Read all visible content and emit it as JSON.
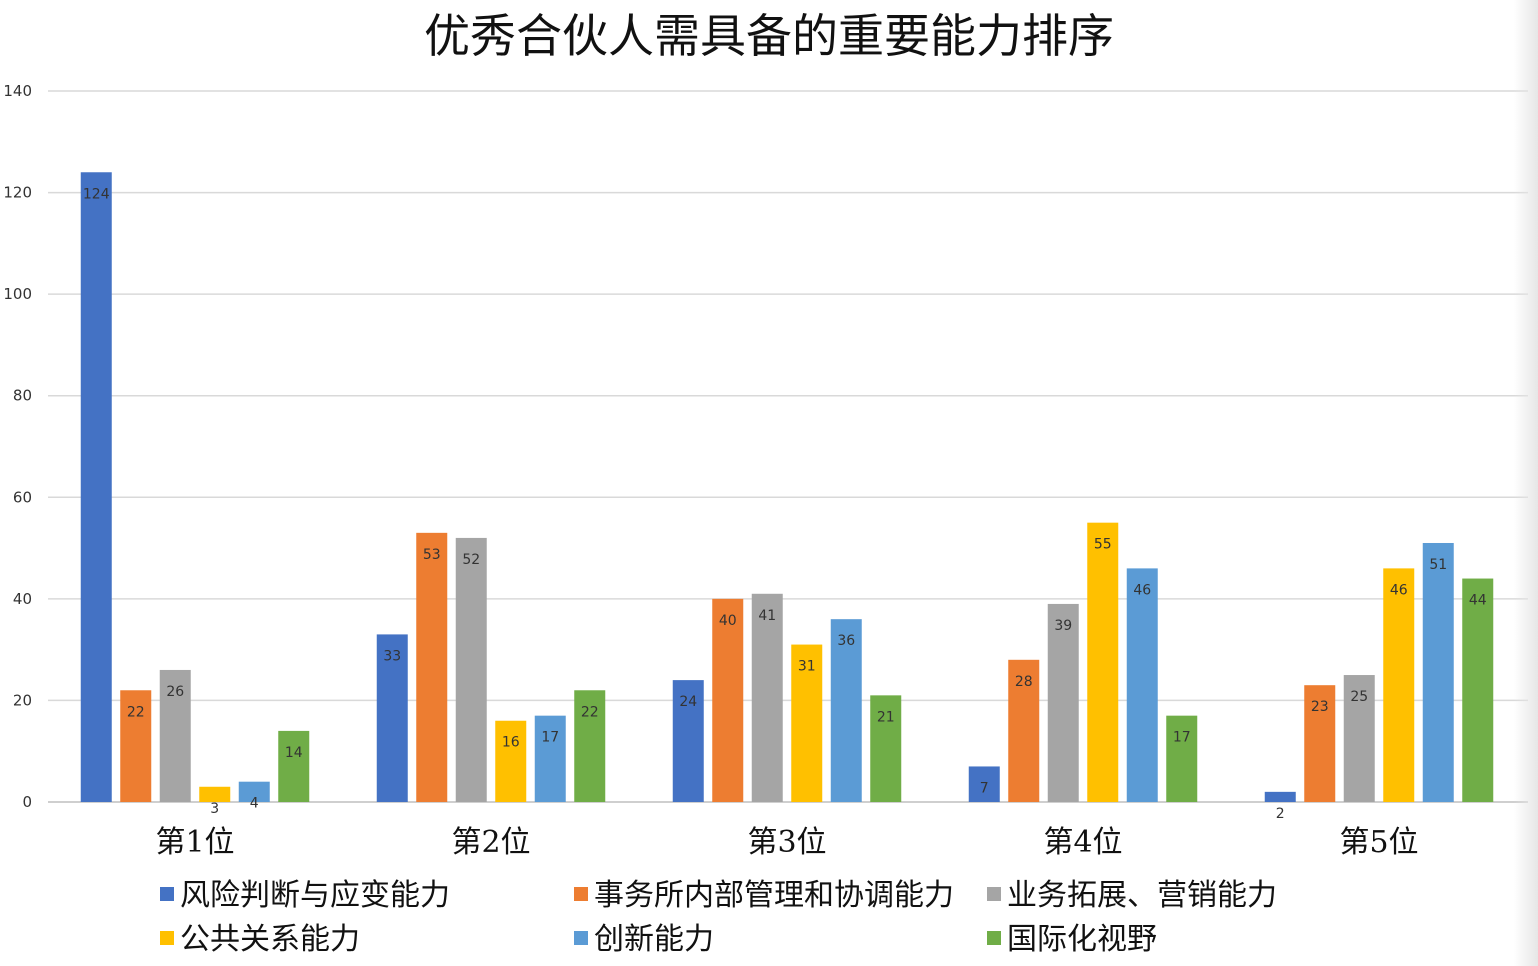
{
  "chart_data": {
    "type": "bar",
    "title": "优秀合伙人需具备的重要能力排序",
    "xlabel": "",
    "ylabel": "",
    "ylim": [
      0,
      140
    ],
    "yticks": [
      0,
      20,
      40,
      60,
      80,
      100,
      120,
      140
    ],
    "grid": true,
    "legend_position": "bottom",
    "categories": [
      "第1位",
      "第2位",
      "第3位",
      "第4位",
      "第5位"
    ],
    "series": [
      {
        "name": "风险判断与应变能力",
        "color": "#4472C4",
        "values": [
          124,
          33,
          24,
          7,
          2
        ]
      },
      {
        "name": "事务所内部管理和协调能力",
        "color": "#ED7D31",
        "values": [
          22,
          53,
          40,
          28,
          23
        ]
      },
      {
        "name": "业务拓展、营销能力",
        "color": "#A5A5A5",
        "values": [
          26,
          52,
          41,
          39,
          25
        ]
      },
      {
        "name": "公共关系能力",
        "color": "#FFC000",
        "values": [
          3,
          16,
          31,
          55,
          46
        ]
      },
      {
        "name": "创新能力",
        "color": "#5B9BD5",
        "values": [
          4,
          17,
          36,
          46,
          51
        ]
      },
      {
        "name": "国际化视野",
        "color": "#70AD47",
        "values": [
          14,
          22,
          21,
          17,
          44
        ]
      }
    ]
  }
}
